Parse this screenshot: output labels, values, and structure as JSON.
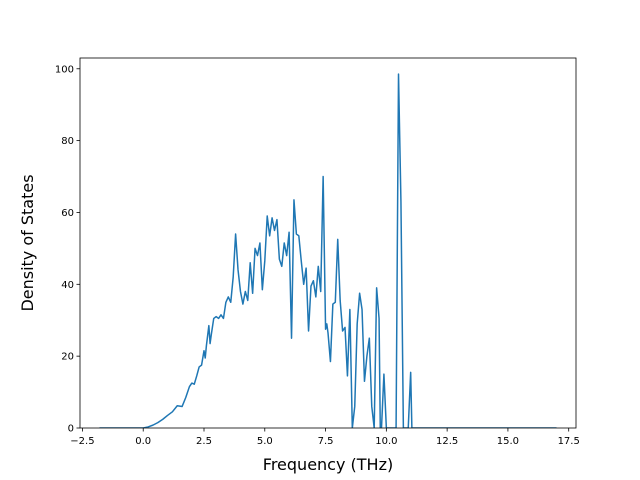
{
  "chart_data": {
    "type": "line",
    "title": "",
    "xlabel": "Frequency (THz)",
    "ylabel": "Density of States",
    "xlim": [
      -2.6,
      17.8
    ],
    "ylim": [
      0,
      103
    ],
    "xticks": [
      -2.5,
      0.0,
      2.5,
      5.0,
      7.5,
      10.0,
      12.5,
      15.0,
      17.5
    ],
    "xtick_labels": [
      "−2.5",
      "0.0",
      "2.5",
      "5.0",
      "7.5",
      "10.0",
      "12.5",
      "15.0",
      "17.5"
    ],
    "yticks": [
      0,
      20,
      40,
      60,
      80,
      100
    ],
    "ytick_labels": [
      "0",
      "20",
      "40",
      "60",
      "80",
      "100"
    ],
    "grid": false,
    "legend": "none",
    "series": [
      {
        "color": "#1f77b4",
        "x": [
          -1.8,
          -1.0,
          -0.5,
          0.0,
          0.2,
          0.4,
          0.6,
          0.8,
          1.0,
          1.2,
          1.4,
          1.6,
          1.75,
          1.9,
          2.0,
          2.1,
          2.2,
          2.3,
          2.4,
          2.5,
          2.55,
          2.6,
          2.7,
          2.75,
          2.8,
          2.9,
          3.0,
          3.1,
          3.2,
          3.3,
          3.4,
          3.5,
          3.6,
          3.7,
          3.8,
          3.9,
          4.0,
          4.1,
          4.2,
          4.3,
          4.4,
          4.5,
          4.6,
          4.7,
          4.8,
          4.9,
          5.0,
          5.1,
          5.2,
          5.3,
          5.4,
          5.5,
          5.6,
          5.7,
          5.8,
          5.9,
          6.0,
          6.1,
          6.2,
          6.3,
          6.4,
          6.5,
          6.6,
          6.7,
          6.8,
          6.9,
          7.0,
          7.1,
          7.2,
          7.3,
          7.4,
          7.5,
          7.55,
          7.6,
          7.7,
          7.8,
          7.9,
          8.0,
          8.1,
          8.2,
          8.3,
          8.4,
          8.5,
          8.6,
          8.7,
          8.8,
          8.9,
          9.0,
          9.1,
          9.2,
          9.3,
          9.4,
          9.5,
          9.6,
          9.7,
          9.75,
          9.8,
          9.9,
          10.0,
          10.05,
          10.1,
          10.2,
          10.3,
          10.4,
          10.5,
          10.6,
          10.7,
          10.8,
          10.9,
          11.0,
          11.05,
          11.1,
          11.2,
          11.5,
          12.0,
          14.0,
          17.0
        ],
        "y": [
          0,
          0,
          0,
          0,
          0.3,
          0.8,
          1.5,
          2.4,
          3.5,
          4.5,
          6.2,
          6.0,
          8.5,
          11.5,
          12.5,
          12.2,
          14.5,
          17.0,
          17.5,
          21.5,
          19.5,
          23.0,
          28.5,
          23.5,
          26.0,
          30.5,
          31.0,
          30.5,
          31.5,
          30.5,
          35.0,
          36.5,
          35.0,
          42.0,
          54.0,
          44.0,
          38.0,
          34.5,
          38.0,
          35.5,
          46.0,
          37.5,
          50.0,
          48.0,
          51.5,
          38.5,
          46.5,
          59.0,
          53.5,
          58.5,
          55.0,
          58.0,
          47.0,
          45.0,
          51.5,
          48.0,
          54.5,
          25.0,
          63.5,
          54.0,
          53.5,
          46.5,
          40.0,
          44.5,
          27.0,
          39.5,
          41.0,
          36.5,
          45.0,
          38.0,
          70.0,
          27.5,
          29.0,
          26.5,
          18.5,
          34.5,
          35.0,
          52.5,
          35.5,
          27.0,
          28.0,
          14.5,
          33.0,
          0,
          6.0,
          29.0,
          37.5,
          33.0,
          13.0,
          20.0,
          25.0,
          6.0,
          0,
          39.0,
          30.5,
          0,
          0,
          15.0,
          0,
          0,
          0,
          0,
          0,
          0,
          98.5,
          63.0,
          0,
          0,
          0,
          15.5,
          0,
          0,
          0,
          0,
          0,
          0,
          0
        ]
      }
    ]
  }
}
